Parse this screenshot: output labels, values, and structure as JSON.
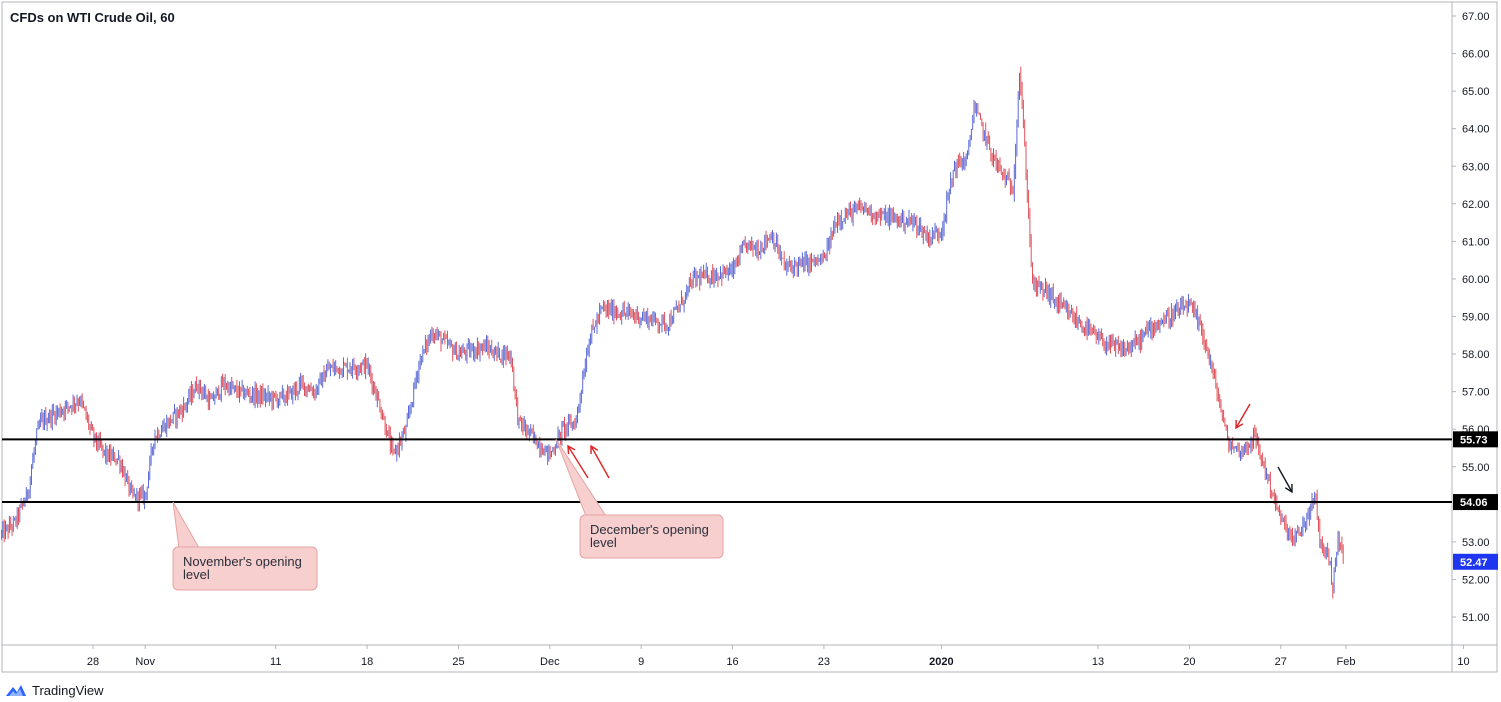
{
  "chart_data": {
    "type": "line",
    "title": "CFDs on WTI Crude Oil, 60",
    "xlabel": "",
    "ylabel": "",
    "ylim": [
      50.3,
      67.2
    ],
    "y_ticks": [
      "67.00",
      "66.00",
      "65.00",
      "64.00",
      "63.00",
      "62.00",
      "61.00",
      "60.00",
      "59.00",
      "58.00",
      "57.00",
      "56.00",
      "55.00",
      "53.00",
      "52.00",
      "51.00"
    ],
    "x_ticks": [
      {
        "label": "28",
        "x": "2019-10-28",
        "bold": false
      },
      {
        "label": "Nov",
        "x": "2019-11-01",
        "bold": false
      },
      {
        "label": "11",
        "x": "2019-11-11",
        "bold": false
      },
      {
        "label": "18",
        "x": "2019-11-18",
        "bold": false
      },
      {
        "label": "25",
        "x": "2019-11-25",
        "bold": false
      },
      {
        "label": "Dec",
        "x": "2019-12-02",
        "bold": false
      },
      {
        "label": "9",
        "x": "2019-12-09",
        "bold": false
      },
      {
        "label": "16",
        "x": "2019-12-16",
        "bold": false
      },
      {
        "label": "23",
        "x": "2019-12-23",
        "bold": false
      },
      {
        "label": "2020",
        "x": "2020-01-01",
        "bold": true
      },
      {
        "label": "13",
        "x": "2020-01-13",
        "bold": false
      },
      {
        "label": "20",
        "x": "2020-01-20",
        "bold": false
      },
      {
        "label": "27",
        "x": "2020-01-27",
        "bold": false
      },
      {
        "label": "Feb",
        "x": "2020-02-01",
        "bold": false
      },
      {
        "label": "10",
        "x": "2020-02-10",
        "bold": false
      }
    ],
    "series": [
      {
        "values": [
          {
            "x": "2019-10-21",
            "y": 53.2
          },
          {
            "x": "2019-10-22",
            "y": 53.5
          },
          {
            "x": "2019-10-23",
            "y": 54.3
          },
          {
            "x": "2019-10-23T16",
            "y": 55.8
          },
          {
            "x": "2019-10-24",
            "y": 56.2
          },
          {
            "x": "2019-10-25",
            "y": 56.4
          },
          {
            "x": "2019-10-27",
            "y": 56.8
          },
          {
            "x": "2019-10-28",
            "y": 55.8
          },
          {
            "x": "2019-10-29",
            "y": 55.3
          },
          {
            "x": "2019-10-30",
            "y": 55.2
          },
          {
            "x": "2019-10-31",
            "y": 54.2
          },
          {
            "x": "2019-11-01",
            "y": 54.2
          },
          {
            "x": "2019-11-01T16",
            "y": 55.8
          },
          {
            "x": "2019-11-04",
            "y": 56.6
          },
          {
            "x": "2019-11-05",
            "y": 57.2
          },
          {
            "x": "2019-11-06",
            "y": 56.7
          },
          {
            "x": "2019-11-07",
            "y": 57.2
          },
          {
            "x": "2019-11-08",
            "y": 57.0
          },
          {
            "x": "2019-11-11",
            "y": 56.8
          },
          {
            "x": "2019-11-12",
            "y": 56.9
          },
          {
            "x": "2019-11-13",
            "y": 57.2
          },
          {
            "x": "2019-11-14",
            "y": 57.0
          },
          {
            "x": "2019-11-15",
            "y": 57.6
          },
          {
            "x": "2019-11-18",
            "y": 57.7
          },
          {
            "x": "2019-11-19",
            "y": 56.6
          },
          {
            "x": "2019-11-20",
            "y": 55.3
          },
          {
            "x": "2019-11-21",
            "y": 56.0
          },
          {
            "x": "2019-11-22",
            "y": 57.8
          },
          {
            "x": "2019-11-23",
            "y": 58.6
          },
          {
            "x": "2019-11-25",
            "y": 58.0
          },
          {
            "x": "2019-11-26",
            "y": 58.1
          },
          {
            "x": "2019-11-27",
            "y": 58.2
          },
          {
            "x": "2019-11-28",
            "y": 58.0
          },
          {
            "x": "2019-11-29",
            "y": 58.0
          },
          {
            "x": "2019-11-29T14",
            "y": 56.2
          },
          {
            "x": "2019-12-02",
            "y": 55.3
          },
          {
            "x": "2019-12-03",
            "y": 56.0
          },
          {
            "x": "2019-12-04",
            "y": 56.2
          },
          {
            "x": "2019-12-05",
            "y": 58.4
          },
          {
            "x": "2019-12-06",
            "y": 59.2
          },
          {
            "x": "2019-12-09",
            "y": 59.0
          },
          {
            "x": "2019-12-10",
            "y": 58.9
          },
          {
            "x": "2019-12-11",
            "y": 58.8
          },
          {
            "x": "2019-12-12",
            "y": 59.3
          },
          {
            "x": "2019-12-13",
            "y": 60.0
          },
          {
            "x": "2019-12-16",
            "y": 60.2
          },
          {
            "x": "2019-12-17",
            "y": 60.9
          },
          {
            "x": "2019-12-18",
            "y": 60.8
          },
          {
            "x": "2019-12-19",
            "y": 61.2
          },
          {
            "x": "2019-12-20",
            "y": 60.3
          },
          {
            "x": "2019-12-23",
            "y": 60.5
          },
          {
            "x": "2019-12-24",
            "y": 61.6
          },
          {
            "x": "2019-12-26",
            "y": 61.9
          },
          {
            "x": "2019-12-27",
            "y": 61.7
          },
          {
            "x": "2019-12-30",
            "y": 61.5
          },
          {
            "x": "2019-12-31",
            "y": 61.1
          },
          {
            "x": "2020-01-01",
            "y": 61.3
          },
          {
            "x": "2020-01-02",
            "y": 63.0
          },
          {
            "x": "2020-01-03",
            "y": 63.2
          },
          {
            "x": "2020-01-03T12",
            "y": 64.6
          },
          {
            "x": "2020-01-05",
            "y": 63.2
          },
          {
            "x": "2020-01-06",
            "y": 62.6
          },
          {
            "x": "2020-01-06T12",
            "y": 62.4
          },
          {
            "x": "2020-01-07",
            "y": 65.6
          },
          {
            "x": "2020-01-07T12",
            "y": 62.8
          },
          {
            "x": "2020-01-08",
            "y": 59.8
          },
          {
            "x": "2020-01-09",
            "y": 59.7
          },
          {
            "x": "2020-01-10",
            "y": 59.3
          },
          {
            "x": "2020-01-13",
            "y": 58.4
          },
          {
            "x": "2020-01-14",
            "y": 58.2
          },
          {
            "x": "2020-01-15",
            "y": 58.1
          },
          {
            "x": "2020-01-16",
            "y": 58.3
          },
          {
            "x": "2020-01-17",
            "y": 58.7
          },
          {
            "x": "2020-01-20",
            "y": 59.3
          },
          {
            "x": "2020-01-21",
            "y": 58.6
          },
          {
            "x": "2020-01-22",
            "y": 57.2
          },
          {
            "x": "2020-01-23",
            "y": 55.6
          },
          {
            "x": "2020-01-24",
            "y": 55.4
          },
          {
            "x": "2020-01-25",
            "y": 55.8
          },
          {
            "x": "2020-01-26",
            "y": 54.7
          },
          {
            "x": "2020-01-27",
            "y": 53.6
          },
          {
            "x": "2020-01-28",
            "y": 53.0
          },
          {
            "x": "2020-01-28T12",
            "y": 53.3
          },
          {
            "x": "2020-01-29",
            "y": 53.6
          },
          {
            "x": "2020-01-29T16",
            "y": 54.2
          },
          {
            "x": "2020-01-30",
            "y": 53.0
          },
          {
            "x": "2020-01-30T16",
            "y": 52.6
          },
          {
            "x": "2020-01-31",
            "y": 51.8
          },
          {
            "x": "2020-01-31T10",
            "y": 53.2
          },
          {
            "x": "2020-01-31T20",
            "y": 52.47
          }
        ]
      }
    ],
    "levels": [
      {
        "label": "55.73",
        "value": 55.73
      },
      {
        "label": "54.06",
        "value": 54.06
      }
    ],
    "last_price": {
      "label": "52.47",
      "value": 52.47
    },
    "annotations": [
      {
        "text": "November's opening level",
        "x": "2019-11-01",
        "y": 54.06
      },
      {
        "text": "December's opening level",
        "x": "2019-12-02",
        "y": 55.73
      }
    ],
    "arrows": [
      {
        "color": "red",
        "x": "2019-12-03",
        "y": 55.5
      },
      {
        "color": "red",
        "x": "2019-12-04",
        "y": 55.5
      },
      {
        "color": "red",
        "x": "2020-01-26",
        "y": 56.1
      },
      {
        "color": "black",
        "x": "2020-01-29T16",
        "y": 54.35
      }
    ],
    "colors": {
      "up": "#5b6bd6",
      "down": "#e0525b",
      "level": "#000000",
      "last": "#1e36f0"
    },
    "grid": false,
    "legend": "none"
  },
  "branding": {
    "name": "TradingView"
  }
}
